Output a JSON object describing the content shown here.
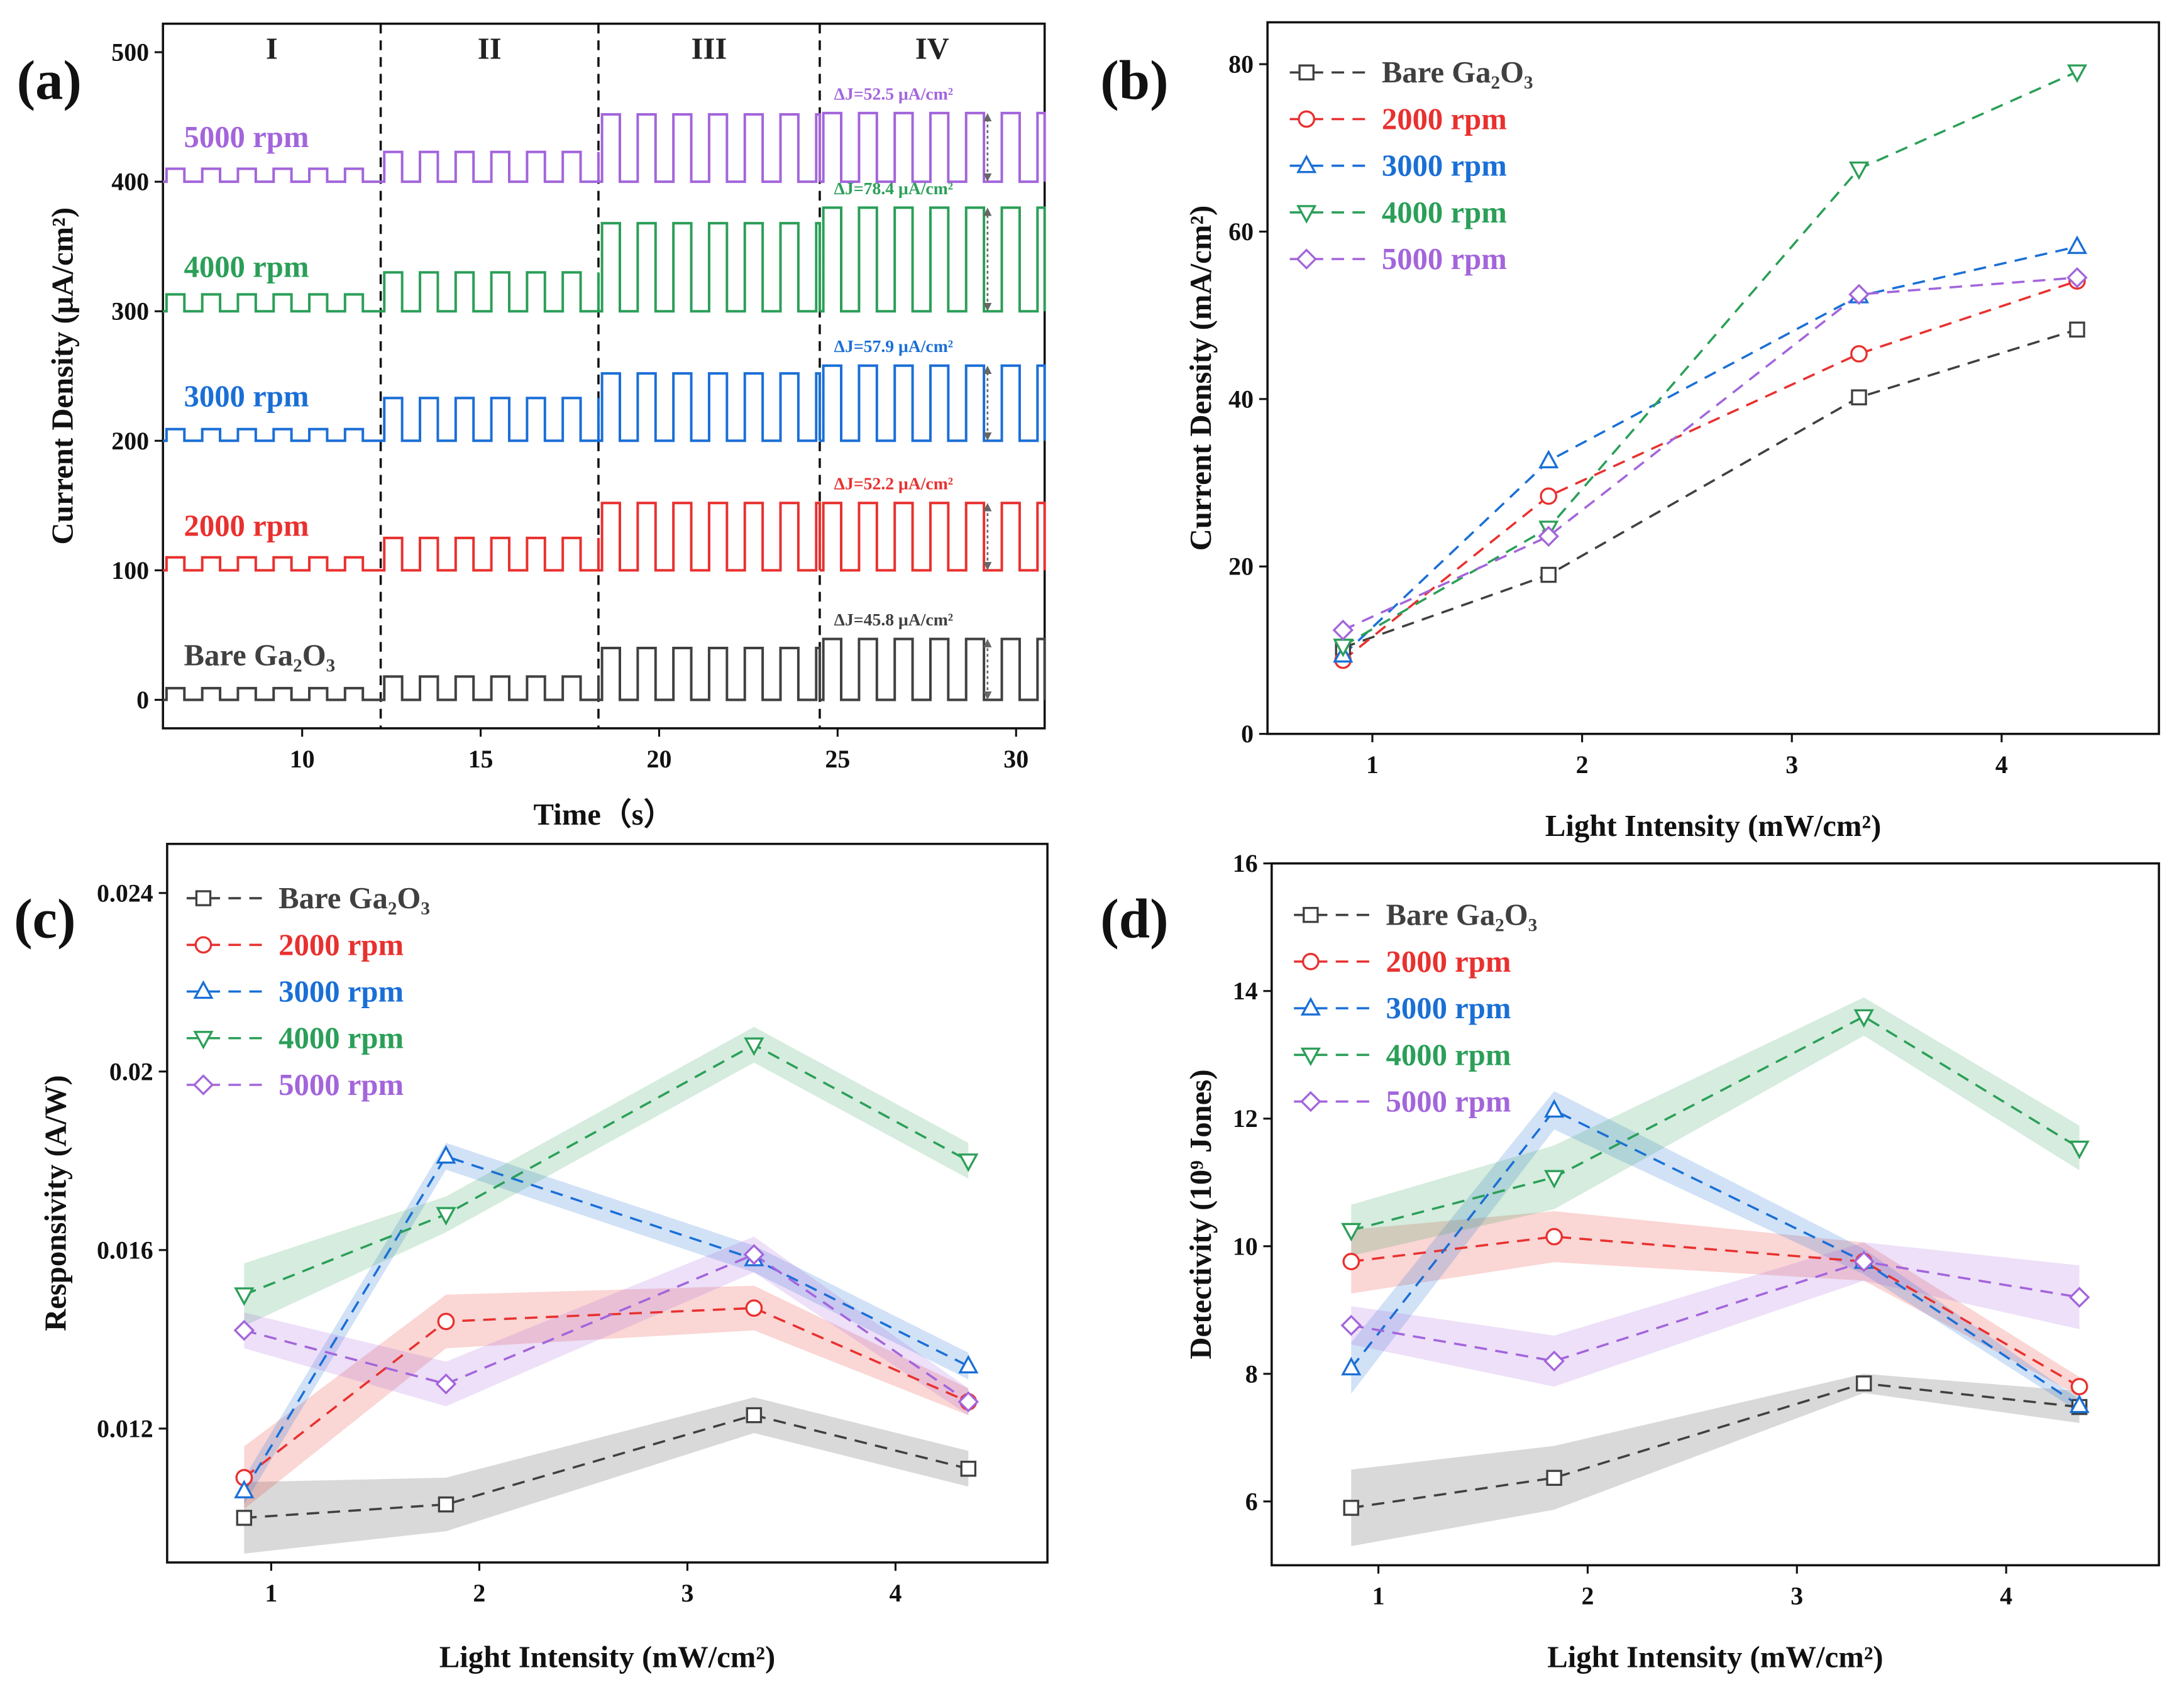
{
  "chart_data": [
    {
      "type": "pulse",
      "label": "(a)",
      "xlabel": "Time（s）",
      "ylabel": "Current Density (μA/cm²)",
      "xlim": [
        6.1,
        30.8
      ],
      "ylim": [
        -22,
        522
      ],
      "xticks": [
        10,
        15,
        20,
        25,
        30
      ],
      "yticks": [
        0,
        100,
        200,
        300,
        400,
        500
      ],
      "period": 1,
      "regions": {
        "labels": [
          "I",
          "II",
          "III",
          "IV"
        ],
        "bounds": [
          12.2,
          18.3,
          24.5
        ]
      },
      "series": [
        {
          "name": "Bare Ga₂O₃",
          "color": "#404040",
          "baseline": 0,
          "peaks": [
            9,
            18,
            40,
            47
          ],
          "annotation": "ΔJ=45.8 μA/cm²"
        },
        {
          "name": "2000 rpm",
          "color": "#e8312f",
          "baseline": 100,
          "peaks": [
            110,
            125,
            152,
            152
          ],
          "annotation": "ΔJ=52.2 μA/cm²"
        },
        {
          "name": "3000 rpm",
          "color": "#1a6fd6",
          "baseline": 200,
          "peaks": [
            209,
            233,
            252,
            258
          ],
          "annotation": "ΔJ=57.9 μA/cm²"
        },
        {
          "name": "4000 rpm",
          "color": "#2b9f58",
          "baseline": 300,
          "peaks": [
            313,
            330,
            368,
            380
          ],
          "annotation": "ΔJ=78.4 μA/cm²"
        },
        {
          "name": "5000 rpm",
          "color": "#a365db",
          "baseline": 400,
          "peaks": [
            410,
            423,
            452,
            453
          ],
          "annotation": "ΔJ=52.5 μA/cm²"
        }
      ]
    },
    {
      "type": "line",
      "label": "(b)",
      "xlabel": "Light Intensity (mW/cm²)",
      "ylabel": "Current Density (mA/cm²)",
      "xlim": [
        0.5,
        4.75
      ],
      "ylim": [
        0,
        85
      ],
      "xticks": [
        1,
        2,
        3,
        4
      ],
      "yticks": [
        0,
        20,
        40,
        60,
        80
      ],
      "legend": "upper left",
      "x": [
        0.86,
        1.84,
        3.32,
        4.36
      ],
      "series": [
        {
          "name": "Bare Ga₂O₃",
          "color": "#404040",
          "marker": "square",
          "values": [
            10.3,
            19,
            40.2,
            48.3
          ]
        },
        {
          "name": "2000 rpm",
          "color": "#e8312f",
          "marker": "circle",
          "values": [
            8.8,
            28.4,
            45.4,
            54.1
          ]
        },
        {
          "name": "3000 rpm",
          "color": "#1a6fd6",
          "marker": "triangle-up",
          "values": [
            9.4,
            32.6,
            52.3,
            58.2
          ]
        },
        {
          "name": "4000 rpm",
          "color": "#2b9f58",
          "marker": "triangle-down",
          "values": [
            10.5,
            24.6,
            67.5,
            79.1
          ]
        },
        {
          "name": "5000 rpm",
          "color": "#a365db",
          "marker": "diamond",
          "values": [
            12.4,
            23.6,
            52.5,
            54.5
          ]
        }
      ]
    },
    {
      "type": "line",
      "label": "(c)",
      "xlabel": "Light Intensity (mW/cm²)",
      "ylabel": "Responsivity (A/W)",
      "xlim": [
        0.5,
        4.73
      ],
      "ylim": [
        0.009,
        0.0251
      ],
      "xticks": [
        1,
        2,
        3,
        4
      ],
      "yticks": [
        0.012,
        0.016,
        0.02,
        0.024
      ],
      "legend": "upper left",
      "x": [
        0.87,
        1.84,
        3.32,
        4.35
      ],
      "series": [
        {
          "name": "Bare Ga₂O₃",
          "color": "#404040",
          "marker": "square",
          "values": [
            0.01,
            0.0103,
            0.0123,
            0.0111
          ],
          "errors": [
            0.0008,
            0.0006,
            0.0004,
            0.0004
          ]
        },
        {
          "name": "2000 rpm",
          "color": "#e8312f",
          "marker": "circle",
          "values": [
            0.0109,
            0.0144,
            0.0147,
            0.0126
          ],
          "errors": [
            0.0007,
            0.0006,
            0.0005,
            0.0003
          ]
        },
        {
          "name": "3000 rpm",
          "color": "#1a6fd6",
          "marker": "triangle-up",
          "values": [
            0.0106,
            0.0181,
            0.0158,
            0.0134
          ],
          "errors": [
            0.0003,
            0.0003,
            0.0003,
            0.0003
          ]
        },
        {
          "name": "4000 rpm",
          "color": "#2b9f58",
          "marker": "triangle-down",
          "values": [
            0.015,
            0.0168,
            0.0206,
            0.018
          ],
          "errors": [
            0.0007,
            0.0004,
            0.0004,
            0.0004
          ]
        },
        {
          "name": "5000 rpm",
          "color": "#a365db",
          "marker": "diamond",
          "values": [
            0.0142,
            0.013,
            0.0159,
            0.0126
          ],
          "errors": [
            0.0004,
            0.0005,
            0.0004,
            0.0003
          ]
        }
      ]
    },
    {
      "type": "line",
      "label": "(d)",
      "xlabel": "Light Intensity (mW/cm²)",
      "ylabel": "Detectivity (10⁹ Jones)",
      "xlim": [
        0.49,
        4.73
      ],
      "ylim": [
        5,
        16
      ],
      "xticks": [
        1,
        2,
        3,
        4
      ],
      "yticks": [
        6,
        8,
        10,
        12,
        14,
        16
      ],
      "legend": "upper left",
      "x": [
        0.87,
        1.84,
        3.32,
        4.35
      ],
      "series": [
        {
          "name": "Bare Ga₂O₃",
          "color": "#404040",
          "marker": "square",
          "values": [
            5.9,
            6.37,
            7.85,
            7.48
          ],
          "errors": [
            0.6,
            0.5,
            0.15,
            0.25
          ]
        },
        {
          "name": "2000 rpm",
          "color": "#e8312f",
          "marker": "circle",
          "values": [
            9.76,
            10.15,
            9.76,
            7.8
          ],
          "errors": [
            0.5,
            0.4,
            0.3,
            0.15
          ]
        },
        {
          "name": "3000 rpm",
          "color": "#1a6fd6",
          "marker": "triangle-up",
          "values": [
            8.09,
            12.13,
            9.76,
            7.5
          ],
          "errors": [
            0.4,
            0.3,
            0.2,
            0.1
          ]
        },
        {
          "name": "4000 rpm",
          "color": "#2b9f58",
          "marker": "triangle-down",
          "values": [
            10.25,
            11.08,
            13.6,
            11.54
          ],
          "errors": [
            0.4,
            0.5,
            0.3,
            0.35
          ]
        },
        {
          "name": "5000 rpm",
          "color": "#a365db",
          "marker": "diamond",
          "values": [
            8.76,
            8.2,
            9.76,
            9.2
          ],
          "errors": [
            0.3,
            0.4,
            0.3,
            0.5
          ]
        }
      ]
    }
  ]
}
